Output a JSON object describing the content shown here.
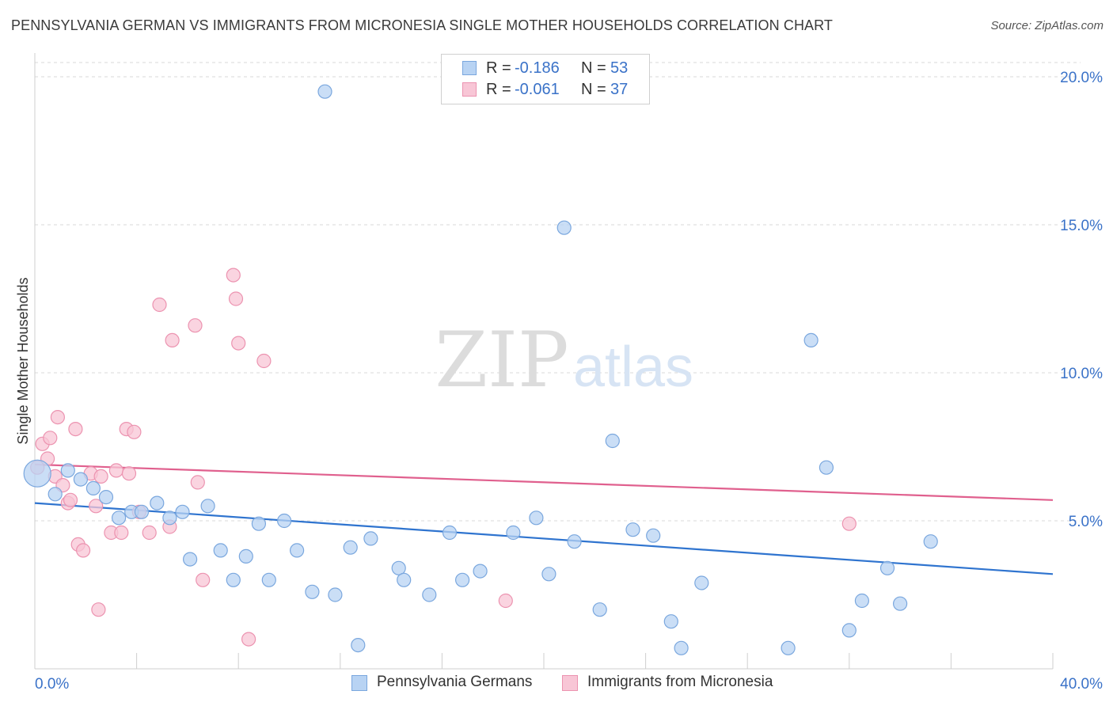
{
  "title": "PENNSYLVANIA GERMAN VS IMMIGRANTS FROM MICRONESIA SINGLE MOTHER HOUSEHOLDS CORRELATION CHART",
  "source": "Source: ZipAtlas.com",
  "watermark": {
    "zip": "ZIP",
    "atlas": "atlas"
  },
  "legend": [
    {
      "r_label": "R =",
      "r_value": "-0.186",
      "n_label": "N =",
      "n_value": "53"
    },
    {
      "r_label": "R =",
      "r_value": "-0.061",
      "n_label": "N =",
      "n_value": "37"
    }
  ],
  "colors": {
    "blue_fill": "#b8d3f3",
    "blue_stroke": "#7aa7de",
    "blue_line": "#2f74cf",
    "pink_fill": "#f8c6d6",
    "pink_stroke": "#ec93b0",
    "pink_line": "#e0608e",
    "grid": "#d8d8d8",
    "axis_text": "#3a72c8"
  },
  "chart_data": {
    "type": "scatter",
    "title": "PENNSYLVANIA GERMAN VS IMMIGRANTS FROM MICRONESIA SINGLE MOTHER HOUSEHOLDS CORRELATION CHART",
    "xlabel": "",
    "ylabel": "Single Mother Households",
    "xlim": [
      0,
      40
    ],
    "ylim": [
      0,
      21
    ],
    "x_tick_labels": [
      "0.0%",
      "40.0%"
    ],
    "y_ticks": [
      5,
      10,
      15,
      20
    ],
    "y_tick_labels": [
      "5.0%",
      "10.0%",
      "15.0%",
      "20.0%"
    ],
    "grid": true,
    "series": [
      {
        "name": "Pennsylvania Germans",
        "color": "blue",
        "r": -0.186,
        "n": 53,
        "trend": {
          "x": [
            0,
            40
          ],
          "y": [
            5.6,
            3.2
          ]
        },
        "points": [
          [
            0.1,
            6.6,
            "large"
          ],
          [
            0.8,
            5.9
          ],
          [
            1.3,
            6.7
          ],
          [
            1.8,
            6.4
          ],
          [
            2.3,
            6.1
          ],
          [
            2.8,
            5.8
          ],
          [
            3.3,
            5.1
          ],
          [
            3.8,
            5.3
          ],
          [
            4.2,
            5.3
          ],
          [
            4.8,
            5.6
          ],
          [
            5.3,
            5.1
          ],
          [
            5.8,
            5.3
          ],
          [
            6.1,
            3.7
          ],
          [
            6.8,
            5.5
          ],
          [
            7.3,
            4.0
          ],
          [
            7.8,
            3.0
          ],
          [
            8.3,
            3.8
          ],
          [
            8.8,
            4.9
          ],
          [
            9.2,
            3.0
          ],
          [
            9.8,
            5.0
          ],
          [
            10.3,
            4.0
          ],
          [
            10.9,
            2.6
          ],
          [
            11.8,
            2.5
          ],
          [
            11.4,
            19.5
          ],
          [
            12.4,
            4.1
          ],
          [
            12.7,
            0.8
          ],
          [
            13.2,
            4.4
          ],
          [
            14.3,
            3.4
          ],
          [
            14.5,
            3.0
          ],
          [
            15.5,
            2.5
          ],
          [
            16.3,
            4.6
          ],
          [
            16.8,
            3.0
          ],
          [
            17.5,
            3.3
          ],
          [
            18.8,
            4.6
          ],
          [
            19.7,
            5.1
          ],
          [
            20.2,
            3.2
          ],
          [
            20.8,
            14.9
          ],
          [
            21.2,
            4.3
          ],
          [
            22.2,
            2.0
          ],
          [
            22.7,
            7.7
          ],
          [
            23.5,
            4.7
          ],
          [
            24.3,
            4.5
          ],
          [
            25.0,
            1.6
          ],
          [
            25.4,
            0.7
          ],
          [
            26.2,
            2.9
          ],
          [
            29.6,
            0.7
          ],
          [
            30.5,
            11.1
          ],
          [
            31.1,
            6.8
          ],
          [
            32.0,
            1.3
          ],
          [
            32.5,
            2.3
          ],
          [
            33.5,
            3.4
          ],
          [
            34.0,
            2.2
          ],
          [
            35.2,
            4.3
          ]
        ]
      },
      {
        "name": "Immigrants from Micronesia",
        "color": "pink",
        "r": -0.061,
        "n": 37,
        "trend": {
          "x": [
            0,
            40
          ],
          "y": [
            6.9,
            5.7
          ]
        },
        "points": [
          [
            0.1,
            6.8
          ],
          [
            0.3,
            7.6
          ],
          [
            0.5,
            7.1
          ],
          [
            0.6,
            7.8
          ],
          [
            0.8,
            6.5
          ],
          [
            0.9,
            8.5
          ],
          [
            1.1,
            6.2
          ],
          [
            1.3,
            5.6
          ],
          [
            1.4,
            5.7
          ],
          [
            1.6,
            8.1
          ],
          [
            1.7,
            4.2
          ],
          [
            1.9,
            4.0
          ],
          [
            2.2,
            6.6
          ],
          [
            2.4,
            5.5
          ],
          [
            2.5,
            2.0
          ],
          [
            2.6,
            6.5
          ],
          [
            3.0,
            4.6
          ],
          [
            3.2,
            6.7
          ],
          [
            3.4,
            4.6
          ],
          [
            3.6,
            8.1
          ],
          [
            3.7,
            6.6
          ],
          [
            3.9,
            8.0
          ],
          [
            4.1,
            5.3
          ],
          [
            4.5,
            4.6
          ],
          [
            4.9,
            12.3
          ],
          [
            5.3,
            4.8
          ],
          [
            5.4,
            11.1
          ],
          [
            6.3,
            11.6
          ],
          [
            6.4,
            6.3
          ],
          [
            6.6,
            3.0
          ],
          [
            7.8,
            13.3
          ],
          [
            7.9,
            12.5
          ],
          [
            8.0,
            11.0
          ],
          [
            8.4,
            1.0
          ],
          [
            9.0,
            10.4
          ],
          [
            18.5,
            2.3
          ],
          [
            32.0,
            4.9
          ]
        ]
      }
    ]
  }
}
